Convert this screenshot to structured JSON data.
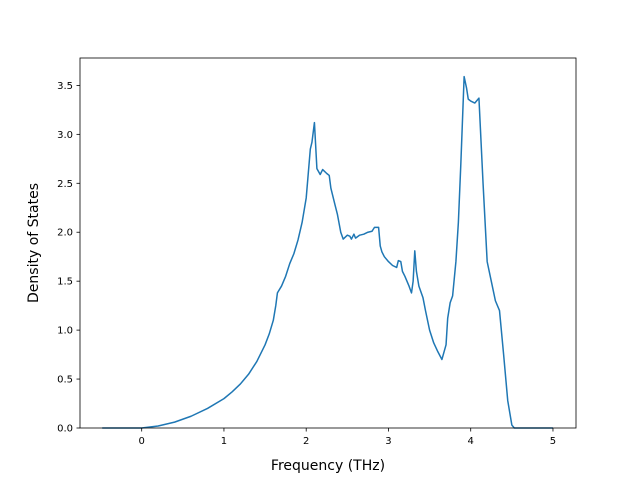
{
  "chart_data": {
    "type": "line",
    "title": "",
    "xlabel": "Frequency (THz)",
    "ylabel": "Density of States",
    "xlim": [
      -0.75,
      5.28
    ],
    "ylim": [
      0.0,
      3.78
    ],
    "x_ticks": [
      {
        "value": 0,
        "label": "0"
      },
      {
        "value": 1,
        "label": "1"
      },
      {
        "value": 2,
        "label": "2"
      },
      {
        "value": 3,
        "label": "3"
      },
      {
        "value": 4,
        "label": "4"
      },
      {
        "value": 5,
        "label": "5"
      }
    ],
    "y_ticks": [
      {
        "value": 0.0,
        "label": "0.0"
      },
      {
        "value": 0.5,
        "label": "0.5"
      },
      {
        "value": 1.0,
        "label": "1.0"
      },
      {
        "value": 1.5,
        "label": "1.5"
      },
      {
        "value": 2.0,
        "label": "2.0"
      },
      {
        "value": 2.5,
        "label": "2.5"
      },
      {
        "value": 3.0,
        "label": "3.0"
      },
      {
        "value": 3.5,
        "label": "3.5"
      }
    ],
    "grid": false,
    "legend": "none",
    "series": [
      {
        "color": "#1f77b4",
        "x": [
          -0.48,
          -0.2,
          0.0,
          0.2,
          0.4,
          0.6,
          0.8,
          1.0,
          1.1,
          1.2,
          1.3,
          1.4,
          1.5,
          1.55,
          1.6,
          1.63,
          1.65,
          1.7,
          1.75,
          1.8,
          1.85,
          1.9,
          1.95,
          2.0,
          2.02,
          2.05,
          2.07,
          2.1,
          2.13,
          2.17,
          2.2,
          2.25,
          2.28,
          2.3,
          2.35,
          2.38,
          2.42,
          2.45,
          2.5,
          2.53,
          2.55,
          2.58,
          2.6,
          2.65,
          2.7,
          2.75,
          2.8,
          2.83,
          2.88,
          2.9,
          2.92,
          2.95,
          3.0,
          3.05,
          3.1,
          3.12,
          3.15,
          3.17,
          3.2,
          3.25,
          3.28,
          3.3,
          3.32,
          3.34,
          3.37,
          3.42,
          3.45,
          3.5,
          3.55,
          3.6,
          3.65,
          3.7,
          3.72,
          3.75,
          3.78,
          3.82,
          3.85,
          3.88,
          3.92,
          3.95,
          3.97,
          4.0,
          4.05,
          4.1,
          4.15,
          4.2,
          4.25,
          4.3,
          4.35,
          4.4,
          4.45,
          4.5,
          4.53,
          4.55,
          4.57,
          4.6,
          5.0
        ],
        "y": [
          0.0,
          0.0,
          0.0,
          0.02,
          0.06,
          0.12,
          0.2,
          0.3,
          0.37,
          0.45,
          0.55,
          0.68,
          0.85,
          0.96,
          1.1,
          1.25,
          1.38,
          1.45,
          1.55,
          1.68,
          1.78,
          1.92,
          2.1,
          2.35,
          2.55,
          2.85,
          2.92,
          3.12,
          2.65,
          2.59,
          2.64,
          2.6,
          2.58,
          2.45,
          2.28,
          2.18,
          2.0,
          1.93,
          1.97,
          1.96,
          1.93,
          1.98,
          1.94,
          1.97,
          1.98,
          2.0,
          2.01,
          2.05,
          2.05,
          1.86,
          1.8,
          1.75,
          1.7,
          1.66,
          1.64,
          1.71,
          1.7,
          1.6,
          1.55,
          1.45,
          1.38,
          1.5,
          1.81,
          1.6,
          1.45,
          1.33,
          1.2,
          1.0,
          0.87,
          0.78,
          0.7,
          0.85,
          1.12,
          1.28,
          1.35,
          1.7,
          2.1,
          2.7,
          3.59,
          3.47,
          3.36,
          3.34,
          3.32,
          3.37,
          2.5,
          1.7,
          1.5,
          1.3,
          1.2,
          0.75,
          0.28,
          0.03,
          0.0,
          0.0,
          0.0,
          0.0,
          0.0
        ]
      }
    ]
  }
}
